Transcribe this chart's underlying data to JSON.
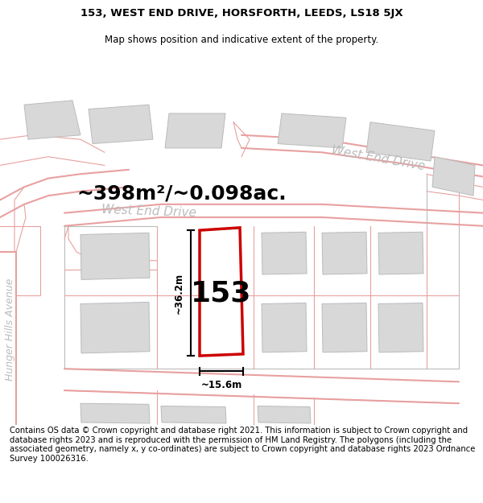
{
  "title_line1": "153, WEST END DRIVE, HORSFORTH, LEEDS, LS18 5JX",
  "title_line2": "Map shows position and indicative extent of the property.",
  "area_label": "~398m²/~0.098ac.",
  "property_number": "153",
  "dim_height": "~36.2m",
  "dim_width": "~15.6m",
  "street_label_upper": "West End Drive",
  "street_label_lower": "West End Drive",
  "street_label_left": "Hunger Hills Avenue",
  "footer_text": "Contains OS data © Crown copyright and database right 2021. This information is subject to Crown copyright and database rights 2023 and is reproduced with the permission of HM Land Registry. The polygons (including the associated geometry, namely x, y co-ordinates) are subject to Crown copyright and database rights 2023 Ordnance Survey 100026316.",
  "bg_color": "#ffffff",
  "road_line_color": "#e8a0a0",
  "road_line_lw": 0.8,
  "road_thick_lw": 1.5,
  "boundary_color": "#bbbbbb",
  "building_fill": "#d8d8d8",
  "building_edge": "#bbbbbb",
  "highlight_color": "#cc0000",
  "highlight_fill": "#ffffff",
  "title_fontsize": 9.5,
  "subtitle_fontsize": 8.5,
  "area_fontsize": 18,
  "number_fontsize": 26,
  "street_fontsize": 11,
  "footer_fontsize": 7.2,
  "dim_fontsize": 8.5
}
